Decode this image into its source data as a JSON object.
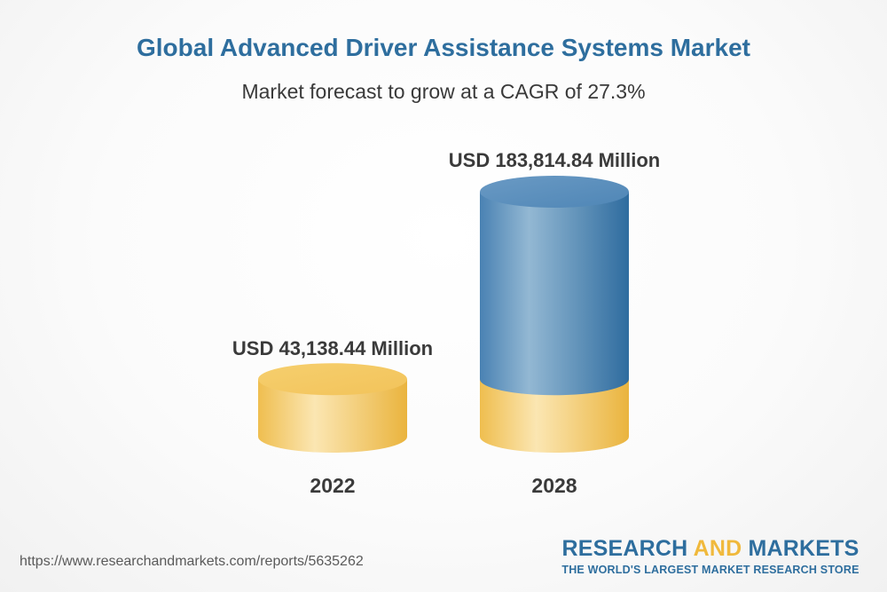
{
  "header": {
    "title": "Global Advanced Driver Assistance Systems Market",
    "subtitle": "Market forecast to grow at a CAGR of 27.3%"
  },
  "chart_data": {
    "type": "bar",
    "style": "3d-cylinder",
    "categories": [
      "2022",
      "2028"
    ],
    "values": [
      43138.44,
      183814.84
    ],
    "unit": "USD Million",
    "data_labels": [
      "USD 43,138.44 Million",
      "USD 183,814.84 Million"
    ],
    "title": "Global Advanced Driver Assistance Systems Market",
    "subtitle": "Market forecast to grow at a CAGR of 27.3%",
    "xlabel": "",
    "ylabel": "",
    "ylim": [
      0,
      183814.84
    ],
    "grid": false,
    "colors": {
      "base": "#f3c65c",
      "growth": "#4e88b8"
    }
  },
  "footer": {
    "url": "https://www.researchandmarkets.com/reports/5635262",
    "logo_part1": "RESEARCH ",
    "logo_part2": "AND",
    "logo_part3": " MARKETS",
    "tagline": "THE WORLD'S LARGEST MARKET RESEARCH STORE"
  }
}
